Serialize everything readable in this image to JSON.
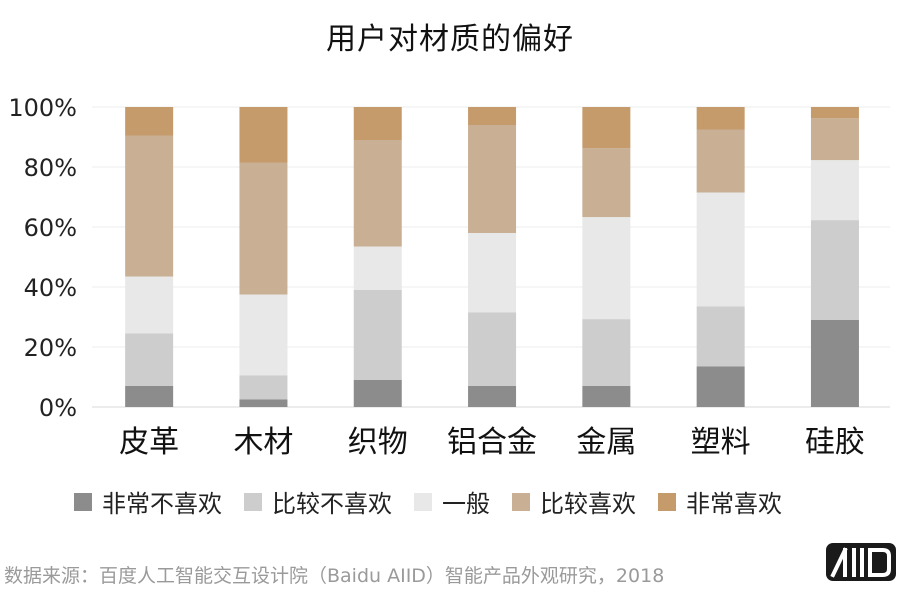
{
  "chart_data": {
    "type": "bar",
    "stacked": true,
    "title": "用户对材质的偏好",
    "categories": [
      "皮革",
      "木材",
      "织物",
      "铝合金",
      "金属",
      "塑料",
      "硅胶"
    ],
    "y_tick_labels": [
      "0%",
      "20%",
      "40%",
      "60%",
      "80%",
      "100%"
    ],
    "ylim": [
      0,
      100
    ],
    "grid": true,
    "legend_position": "bottom",
    "series": [
      {
        "name": "非常不喜欢",
        "color": "#8c8c8c",
        "values": [
          7,
          2.5,
          9,
          7,
          7,
          13.5,
          29
        ]
      },
      {
        "name": "比较不喜欢",
        "color": "#cdcdcd",
        "values": [
          17.5,
          8,
          30,
          24.5,
          22.3,
          20,
          33.3
        ]
      },
      {
        "name": "一般",
        "color": "#e8e8e8",
        "values": [
          19,
          27,
          14.5,
          26.5,
          34,
          38,
          20
        ]
      },
      {
        "name": "比较喜欢",
        "color": "#c9af94",
        "values": [
          47,
          44,
          35.5,
          36,
          23,
          21,
          14
        ]
      },
      {
        "name": "非常喜欢",
        "color": "#c59b6c",
        "values": [
          9.5,
          18.5,
          11,
          6,
          13.7,
          7.5,
          3.7
        ]
      }
    ]
  },
  "source_note": "数据来源：百度人工智能交互设计院（Baidu AIID）智能产品外观研究，2018",
  "brand_logo_text": "AIID"
}
